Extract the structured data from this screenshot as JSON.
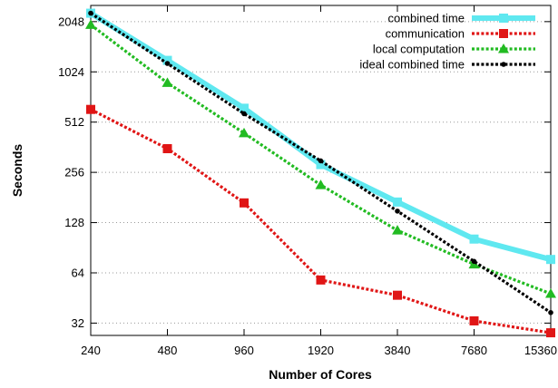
{
  "chart_data": {
    "type": "line",
    "x_scale": "log2",
    "y_scale": "log2",
    "x": [
      240,
      480,
      960,
      1920,
      3840,
      7680,
      15360
    ],
    "x_ticks": [
      "240",
      "480",
      "960",
      "1920",
      "3840",
      "7680",
      "15360"
    ],
    "y_ticks": [
      "32",
      "64",
      "128",
      "256",
      "512",
      "1024",
      "2048"
    ],
    "y_tick_values": [
      32,
      64,
      128,
      256,
      512,
      1024,
      2048
    ],
    "ylim": [
      27,
      2560
    ],
    "xlabel": "Number of Cores",
    "ylabel": "Seconds",
    "grid": "horizontal dotted",
    "legend_position": "top-right",
    "series": [
      {
        "name": "combined time",
        "values": [
          2300,
          1200,
          620,
          285,
          170,
          102,
          77
        ],
        "color": "#5fe8f0",
        "marker": "square",
        "line_style": "solid"
      },
      {
        "name": "communication",
        "values": [
          610,
          355,
          168,
          58,
          47,
          33,
          28
        ],
        "color": "#e01515",
        "marker": "square",
        "line_style": "dotted"
      },
      {
        "name": "local computation",
        "values": [
          1960,
          880,
          440,
          215,
          115,
          72,
          48
        ],
        "color": "#22bb22",
        "marker": "triangle",
        "line_style": "dotted"
      },
      {
        "name": "ideal combined time",
        "values": [
          2300,
          1150,
          575,
          300,
          150,
          75,
          37
        ],
        "color": "#000000",
        "marker": "dot",
        "line_style": "dotted"
      }
    ]
  }
}
